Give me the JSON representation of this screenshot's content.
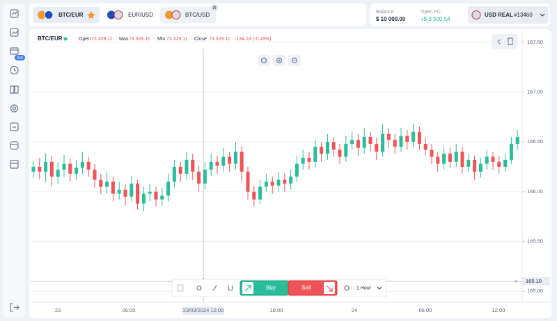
{
  "tabs": [
    {
      "symbol": "BTC/EUR"
    },
    {
      "symbol": "EUR/USD"
    },
    {
      "symbol": "BTC/USD"
    }
  ],
  "account": {
    "balance_label": "Balance",
    "balance": "$ 10 000.00",
    "pl_label": "Open P/L",
    "pl": "+$ 3 500.54",
    "name": "USD REAL",
    "number": "#13460"
  },
  "sidebar": {
    "badge": "326"
  },
  "chart_header": {
    "symbol": "BTC/EUR",
    "open_label": "Open",
    "open": "73 329.11",
    "max_label": "Max",
    "max": "73 329.11",
    "min_label": "Min",
    "min": "73 329.11",
    "close_label": "Close",
    "close": "73 329.11",
    "change": "-134.18 (-0.18%)"
  },
  "toolbar": {
    "buy": "Buy",
    "sell": "Sell",
    "interval": "1 Hour"
  },
  "chart": {
    "type": "candlestick",
    "up_color": "#2bbd9a",
    "down_color": "#ef5458",
    "ylim": [
      164.89,
      167.61
    ],
    "yticks": [
      {
        "value": 167.5,
        "label": "167.50"
      },
      {
        "value": 167,
        "label": "167.00"
      },
      {
        "value": 166.5,
        "label": "166.50"
      },
      {
        "value": 166,
        "label": "166.00"
      },
      {
        "value": 165.5,
        "label": "165.50"
      },
      {
        "value": 165,
        "label": "165.00"
      }
    ],
    "xticks": [
      "23",
      "06:00",
      "23/03/2024 12:00",
      "18:00",
      "24",
      "06:00",
      "12:00"
    ],
    "crosshair": {
      "value": 165.1,
      "label": "165.10"
    },
    "candles": [
      [
        166.2,
        166.31,
        166.14,
        166.25
      ],
      [
        166.25,
        166.34,
        166.12,
        166.2
      ],
      [
        166.2,
        166.38,
        166.1,
        166.3
      ],
      [
        166.3,
        166.36,
        166.05,
        166.15
      ],
      [
        166.15,
        166.3,
        166.08,
        166.22
      ],
      [
        166.22,
        166.37,
        166.15,
        166.28
      ],
      [
        166.28,
        166.33,
        166.1,
        166.18
      ],
      [
        166.18,
        166.32,
        166.12,
        166.24
      ],
      [
        166.24,
        166.4,
        166.18,
        166.3
      ],
      [
        166.3,
        166.35,
        166.15,
        166.22
      ],
      [
        166.22,
        166.28,
        166.04,
        166.12
      ],
      [
        166.12,
        166.18,
        165.98,
        166.05
      ],
      [
        166.05,
        166.2,
        165.98,
        166.1
      ],
      [
        166.1,
        166.15,
        165.9,
        165.98
      ],
      [
        165.98,
        166.1,
        165.92,
        166.02
      ],
      [
        166.02,
        166.08,
        165.86,
        165.95
      ],
      [
        165.95,
        166.16,
        165.9,
        166.08
      ],
      [
        166.08,
        166.12,
        165.82,
        165.88
      ],
      [
        165.88,
        166.05,
        165.8,
        165.98
      ],
      [
        165.98,
        166.08,
        165.9,
        166.0
      ],
      [
        166.0,
        166.05,
        165.85,
        165.92
      ],
      [
        165.92,
        166.04,
        165.86,
        165.96
      ],
      [
        165.96,
        166.18,
        165.9,
        166.1
      ],
      [
        166.1,
        166.32,
        166.04,
        166.25
      ],
      [
        166.25,
        166.3,
        166.1,
        166.18
      ],
      [
        166.18,
        166.4,
        166.12,
        166.32
      ],
      [
        166.32,
        166.38,
        166.12,
        166.2
      ],
      [
        166.2,
        166.26,
        166.0,
        166.08
      ],
      [
        166.08,
        166.3,
        166.02,
        166.22
      ],
      [
        166.22,
        166.38,
        166.16,
        166.3
      ],
      [
        166.3,
        166.36,
        166.18,
        166.26
      ],
      [
        166.26,
        166.44,
        166.2,
        166.35
      ],
      [
        166.35,
        166.4,
        166.2,
        166.28
      ],
      [
        166.28,
        166.5,
        166.22,
        166.4
      ],
      [
        166.4,
        166.46,
        166.1,
        166.2
      ],
      [
        166.2,
        166.25,
        165.92,
        166.0
      ],
      [
        166.0,
        166.06,
        165.85,
        165.92
      ],
      [
        165.92,
        166.12,
        165.88,
        166.05
      ],
      [
        166.05,
        166.18,
        166.0,
        166.1
      ],
      [
        166.1,
        166.15,
        165.98,
        166.06
      ],
      [
        166.06,
        166.2,
        166.0,
        166.12
      ],
      [
        166.12,
        166.18,
        166.0,
        166.08
      ],
      [
        166.08,
        166.22,
        166.02,
        166.15
      ],
      [
        166.15,
        166.36,
        166.1,
        166.28
      ],
      [
        166.28,
        166.42,
        166.22,
        166.34
      ],
      [
        166.34,
        166.4,
        166.22,
        166.3
      ],
      [
        166.3,
        166.52,
        166.24,
        166.45
      ],
      [
        166.45,
        166.5,
        166.3,
        166.38
      ],
      [
        166.38,
        166.58,
        166.32,
        166.5
      ],
      [
        166.5,
        166.55,
        166.35,
        166.42
      ],
      [
        166.42,
        166.48,
        166.28,
        166.35
      ],
      [
        166.35,
        166.56,
        166.3,
        166.48
      ],
      [
        166.48,
        166.6,
        166.42,
        166.52
      ],
      [
        166.52,
        166.58,
        166.36,
        166.44
      ],
      [
        166.44,
        166.64,
        166.38,
        166.55
      ],
      [
        166.55,
        166.6,
        166.4,
        166.48
      ],
      [
        166.48,
        166.54,
        166.32,
        166.4
      ],
      [
        166.4,
        166.68,
        166.35,
        166.58
      ],
      [
        166.58,
        166.64,
        166.44,
        166.52
      ],
      [
        166.52,
        166.58,
        166.38,
        166.45
      ],
      [
        166.45,
        166.64,
        166.4,
        166.56
      ],
      [
        166.56,
        166.62,
        166.42,
        166.5
      ],
      [
        166.5,
        166.68,
        166.45,
        166.6
      ],
      [
        166.6,
        166.65,
        166.42,
        166.48
      ],
      [
        166.48,
        166.54,
        166.36,
        166.42
      ],
      [
        166.42,
        166.48,
        166.28,
        166.35
      ],
      [
        166.35,
        166.4,
        166.2,
        166.28
      ],
      [
        166.28,
        166.45,
        166.22,
        166.38
      ],
      [
        166.38,
        166.44,
        166.24,
        166.3
      ],
      [
        166.3,
        166.48,
        166.25,
        166.4
      ],
      [
        166.4,
        166.45,
        166.18,
        166.25
      ],
      [
        166.25,
        166.38,
        166.2,
        166.32
      ],
      [
        166.32,
        166.36,
        166.12,
        166.2
      ],
      [
        166.2,
        166.34,
        166.14,
        166.28
      ],
      [
        166.28,
        166.42,
        166.22,
        166.35
      ],
      [
        166.35,
        166.4,
        166.22,
        166.3
      ],
      [
        166.3,
        166.36,
        166.18,
        166.25
      ],
      [
        166.25,
        166.38,
        166.2,
        166.32
      ],
      [
        166.32,
        166.55,
        166.28,
        166.48
      ],
      [
        166.48,
        166.62,
        166.42,
        166.55
      ]
    ]
  }
}
